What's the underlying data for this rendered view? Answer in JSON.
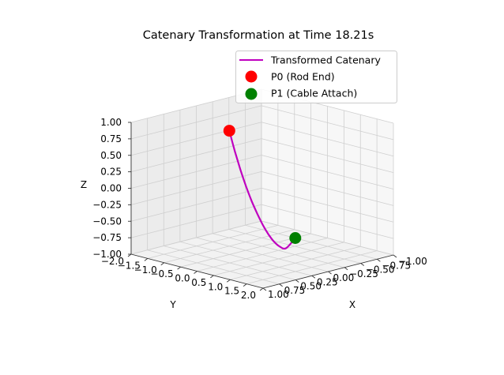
{
  "chart_data": {
    "type": "line3d",
    "title": "Catenary Transformation at Time 18.21s",
    "xlabel": "X",
    "ylabel": "Y",
    "zlabel": "Z",
    "xlim": [
      -1.0,
      1.0
    ],
    "ylim": [
      -2.0,
      2.0
    ],
    "zlim": [
      -1.0,
      1.0
    ],
    "x_ticks": [
      -1.0,
      -0.75,
      -0.5,
      -0.25,
      0.0,
      0.25,
      0.5,
      0.75,
      1.0
    ],
    "x_tick_labels": [
      "−1.00",
      "−0.75",
      "−0.50",
      "−0.25",
      "0.00",
      "0.25",
      "0.50",
      "0.75",
      "1.00"
    ],
    "y_ticks": [
      -2.0,
      -1.5,
      -1.0,
      -0.5,
      0.0,
      0.5,
      1.0,
      1.5,
      2.0
    ],
    "y_tick_labels": [
      "−2.0",
      "−1.5",
      "−1.0",
      "−0.5",
      "0.0",
      "0.5",
      "1.0",
      "1.5",
      "2.0"
    ],
    "z_ticks": [
      -1.0,
      -0.75,
      -0.5,
      -0.25,
      0.0,
      0.25,
      0.5,
      0.75,
      1.0
    ],
    "z_tick_labels": [
      "−1.00",
      "−0.75",
      "−0.50",
      "−0.25",
      "0.00",
      "0.25",
      "0.50",
      "0.75",
      "1.00"
    ],
    "grid": true,
    "legend_position": "top-right",
    "series": [
      {
        "name": "Transformed Catenary",
        "kind": "line",
        "color": "#bf00bf",
        "x": [
          0.0,
          0.0,
          0.0,
          0.0,
          0.0,
          0.0,
          0.0,
          0.0,
          0.0,
          0.0,
          0.0,
          0.0
        ],
        "y": [
          -1.0,
          -0.83,
          -0.66,
          -0.49,
          -0.32,
          -0.15,
          0.02,
          0.19,
          0.36,
          0.53,
          0.72,
          1.0
        ],
        "z": [
          0.75,
          0.46,
          0.2,
          -0.03,
          -0.23,
          -0.4,
          -0.55,
          -0.67,
          -0.76,
          -0.81,
          -0.81,
          -0.62
        ]
      },
      {
        "name": "P0 (Rod End)",
        "kind": "point",
        "color": "#ff0000",
        "x": [
          0.0
        ],
        "y": [
          -1.0
        ],
        "z": [
          0.75
        ]
      },
      {
        "name": "P1 (Cable Attach)",
        "kind": "point",
        "color": "#008000",
        "x": [
          0.0
        ],
        "y": [
          1.0
        ],
        "z": [
          -0.62
        ]
      }
    ]
  }
}
